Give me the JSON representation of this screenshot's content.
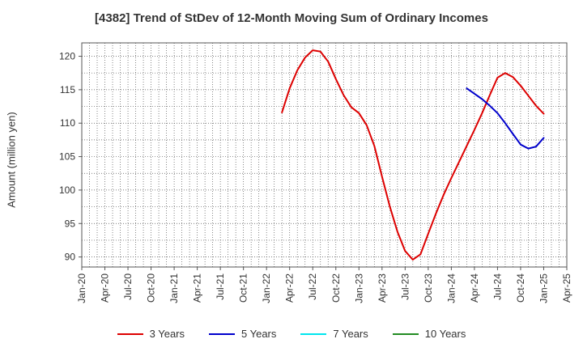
{
  "chart_data": {
    "type": "line",
    "title": "[4382]  Trend of StDev of 12-Month Moving Sum of Ordinary Incomes",
    "xlabel": "",
    "ylabel": "Amount (million yen)",
    "ylim": [
      88.5,
      122
    ],
    "yticks": [
      90,
      95,
      100,
      105,
      110,
      115,
      120
    ],
    "grid": true,
    "legend_position": "bottom",
    "x_ticks": [
      "Jan-20",
      "Apr-20",
      "Jul-20",
      "Oct-20",
      "Jan-21",
      "Apr-21",
      "Jul-21",
      "Oct-21",
      "Jan-22",
      "Apr-22",
      "Jul-22",
      "Oct-22",
      "Jan-23",
      "Apr-23",
      "Jul-23",
      "Oct-23",
      "Jan-24",
      "Apr-24",
      "Jul-24",
      "Oct-24",
      "Jan-25",
      "Apr-25"
    ],
    "series": [
      {
        "name": "3 Years",
        "color": "#dd0000",
        "points": [
          [
            "Mar-22",
            111.6
          ],
          [
            "Apr-22",
            115.2
          ],
          [
            "May-22",
            117.9
          ],
          [
            "Jun-22",
            119.8
          ],
          [
            "Jul-22",
            120.9
          ],
          [
            "Aug-22",
            120.7
          ],
          [
            "Sep-22",
            119.2
          ],
          [
            "Oct-22",
            116.6
          ],
          [
            "Nov-22",
            114.2
          ],
          [
            "Dec-22",
            112.4
          ],
          [
            "Jan-23",
            111.5
          ],
          [
            "Feb-23",
            109.7
          ],
          [
            "Mar-23",
            106.6
          ],
          [
            "Apr-23",
            102.0
          ],
          [
            "May-23",
            97.6
          ],
          [
            "Jun-23",
            93.8
          ],
          [
            "Jul-23",
            90.9
          ],
          [
            "Aug-23",
            89.6
          ],
          [
            "Sep-23",
            90.4
          ],
          [
            "Oct-23",
            93.5
          ],
          [
            "Nov-23",
            96.5
          ],
          [
            "Dec-23",
            99.3
          ],
          [
            "Jan-24",
            101.8
          ],
          [
            "Feb-24",
            104.2
          ],
          [
            "Mar-24",
            106.6
          ],
          [
            "Apr-24",
            109.0
          ],
          [
            "May-24",
            111.5
          ],
          [
            "Jun-24",
            114.2
          ],
          [
            "Jul-24",
            116.8
          ],
          [
            "Aug-24",
            117.5
          ],
          [
            "Sep-24",
            116.9
          ],
          [
            "Oct-24",
            115.6
          ],
          [
            "Nov-24",
            114.1
          ],
          [
            "Dec-24",
            112.6
          ],
          [
            "Jan-25",
            111.4
          ]
        ]
      },
      {
        "name": "5 Years",
        "color": "#0000cc",
        "points": [
          [
            "Mar-24",
            115.2
          ],
          [
            "Apr-24",
            114.4
          ],
          [
            "May-24",
            113.6
          ],
          [
            "Jun-24",
            112.6
          ],
          [
            "Jul-24",
            111.5
          ],
          [
            "Aug-24",
            110.0
          ],
          [
            "Sep-24",
            108.4
          ],
          [
            "Oct-24",
            106.8
          ],
          [
            "Nov-24",
            106.2
          ],
          [
            "Dec-24",
            106.5
          ],
          [
            "Jan-25",
            107.8
          ]
        ]
      },
      {
        "name": "7 Years",
        "color": "#00e5ee",
        "points": []
      },
      {
        "name": "10 Years",
        "color": "#228b22",
        "points": []
      }
    ]
  }
}
